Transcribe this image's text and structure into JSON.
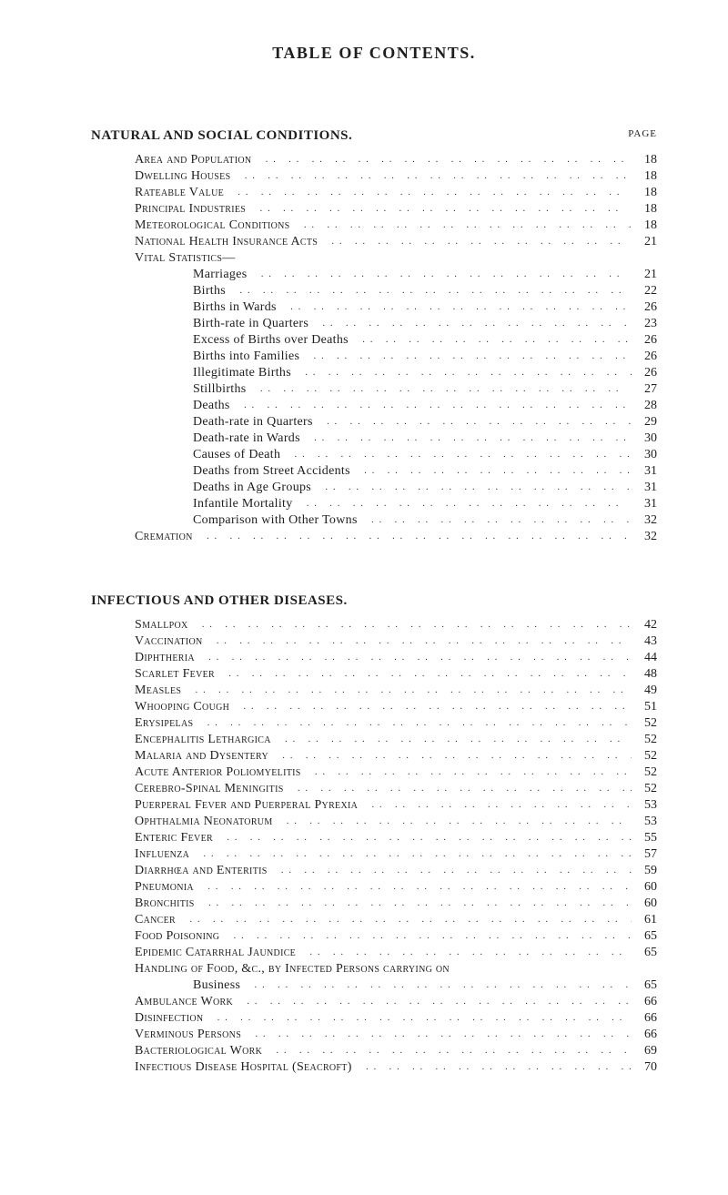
{
  "title": "TABLE OF CONTENTS.",
  "page_header_label": "PAGE",
  "leader_glyph": "..",
  "sections": [
    {
      "heading": "NATURAL AND SOCIAL CONDITIONS.",
      "rows": [
        {
          "indent": 0,
          "label": "Area and Population",
          "page": "18"
        },
        {
          "indent": 0,
          "label": "Dwelling Houses",
          "page": "18"
        },
        {
          "indent": 0,
          "label": "Rateable Value",
          "page": "18"
        },
        {
          "indent": 0,
          "label": "Principal Industries",
          "page": "18"
        },
        {
          "indent": 0,
          "label": "Meteorological Conditions",
          "page": "18"
        },
        {
          "indent": 0,
          "label": "National Health Insurance Acts",
          "page": "21"
        },
        {
          "indent": 0,
          "label": "Vital Statistics—",
          "page": ""
        },
        {
          "indent": 1,
          "label": "Marriages",
          "page": "21",
          "normalcase": true
        },
        {
          "indent": 1,
          "label": "Births",
          "page": "22",
          "normalcase": true
        },
        {
          "indent": 1,
          "label": "Births in Wards",
          "page": "26",
          "normalcase": true
        },
        {
          "indent": 1,
          "label": "Birth-rate in Quarters",
          "page": "23",
          "normalcase": true
        },
        {
          "indent": 1,
          "label": "Excess of Births over Deaths",
          "page": "26",
          "normalcase": true
        },
        {
          "indent": 1,
          "label": "Births into Families",
          "page": "26",
          "normalcase": true
        },
        {
          "indent": 1,
          "label": "Illegitimate Births",
          "page": "26",
          "normalcase": true
        },
        {
          "indent": 1,
          "label": "Stillbirths",
          "page": "27",
          "normalcase": true
        },
        {
          "indent": 1,
          "label": "Deaths",
          "page": "28",
          "normalcase": true
        },
        {
          "indent": 1,
          "label": "Death-rate in Quarters",
          "page": "29",
          "normalcase": true
        },
        {
          "indent": 1,
          "label": "Death-rate in Wards",
          "page": "30",
          "normalcase": true
        },
        {
          "indent": 1,
          "label": "Causes of Death",
          "page": "30",
          "normalcase": true
        },
        {
          "indent": 1,
          "label": "Deaths from Street Accidents",
          "page": "31",
          "normalcase": true
        },
        {
          "indent": 1,
          "label": "Deaths in Age Groups",
          "page": "31",
          "normalcase": true
        },
        {
          "indent": 1,
          "label": "Infantile Mortality",
          "page": "31",
          "normalcase": true
        },
        {
          "indent": 1,
          "label": "Comparison with Other Towns",
          "page": "32",
          "normalcase": true
        },
        {
          "indent": 0,
          "label": "Cremation",
          "page": "32"
        }
      ]
    },
    {
      "heading": "INFECTIOUS AND OTHER DISEASES.",
      "rows": [
        {
          "indent": 0,
          "label": "Smallpox",
          "page": "42"
        },
        {
          "indent": 0,
          "label": "Vaccination",
          "page": "43"
        },
        {
          "indent": 0,
          "label": "Diphtheria",
          "page": "44"
        },
        {
          "indent": 0,
          "label": "Scarlet Fever",
          "page": "48"
        },
        {
          "indent": 0,
          "label": "Measles",
          "page": "49"
        },
        {
          "indent": 0,
          "label": "Whooping Cough",
          "page": "51"
        },
        {
          "indent": 0,
          "label": "Erysipelas",
          "page": "52"
        },
        {
          "indent": 0,
          "label": "Encephalitis Lethargica",
          "page": "52"
        },
        {
          "indent": 0,
          "label": "Malaria and Dysentery",
          "page": "52"
        },
        {
          "indent": 0,
          "label": "Acute Anterior Poliomyelitis",
          "page": "52"
        },
        {
          "indent": 0,
          "label": "Cerebro-Spinal Meningitis",
          "page": "52"
        },
        {
          "indent": 0,
          "label": "Puerperal Fever and Puerperal Pyrexia",
          "page": "53"
        },
        {
          "indent": 0,
          "label": "Ophthalmia Neonatorum",
          "page": "53"
        },
        {
          "indent": 0,
          "label": "Enteric Fever",
          "page": "55"
        },
        {
          "indent": 0,
          "label": "Influenza",
          "page": "57"
        },
        {
          "indent": 0,
          "label": "Diarrhœa and Enteritis",
          "page": "59"
        },
        {
          "indent": 0,
          "label": "Pneumonia",
          "page": "60"
        },
        {
          "indent": 0,
          "label": "Bronchitis",
          "page": "60"
        },
        {
          "indent": 0,
          "label": "Cancer",
          "page": "61"
        },
        {
          "indent": 0,
          "label": "Food Poisoning",
          "page": "65"
        },
        {
          "indent": 0,
          "label": "Epidemic Catarrhal Jaundice",
          "page": "65"
        },
        {
          "indent": 0,
          "label": "Handling of Food, &c., by Infected Persons carrying on",
          "page": ""
        },
        {
          "indent": 1,
          "label": "Business",
          "page": "65",
          "normalcase": true
        },
        {
          "indent": 0,
          "label": "Ambulance Work",
          "page": "66"
        },
        {
          "indent": 0,
          "label": "Disinfection",
          "page": "66"
        },
        {
          "indent": 0,
          "label": "Verminous Persons",
          "page": "66"
        },
        {
          "indent": 0,
          "label": "Bacteriological Work",
          "page": "69"
        },
        {
          "indent": 0,
          "label": "Infectious Disease Hospital (Seacroft)",
          "page": "70"
        }
      ]
    }
  ]
}
